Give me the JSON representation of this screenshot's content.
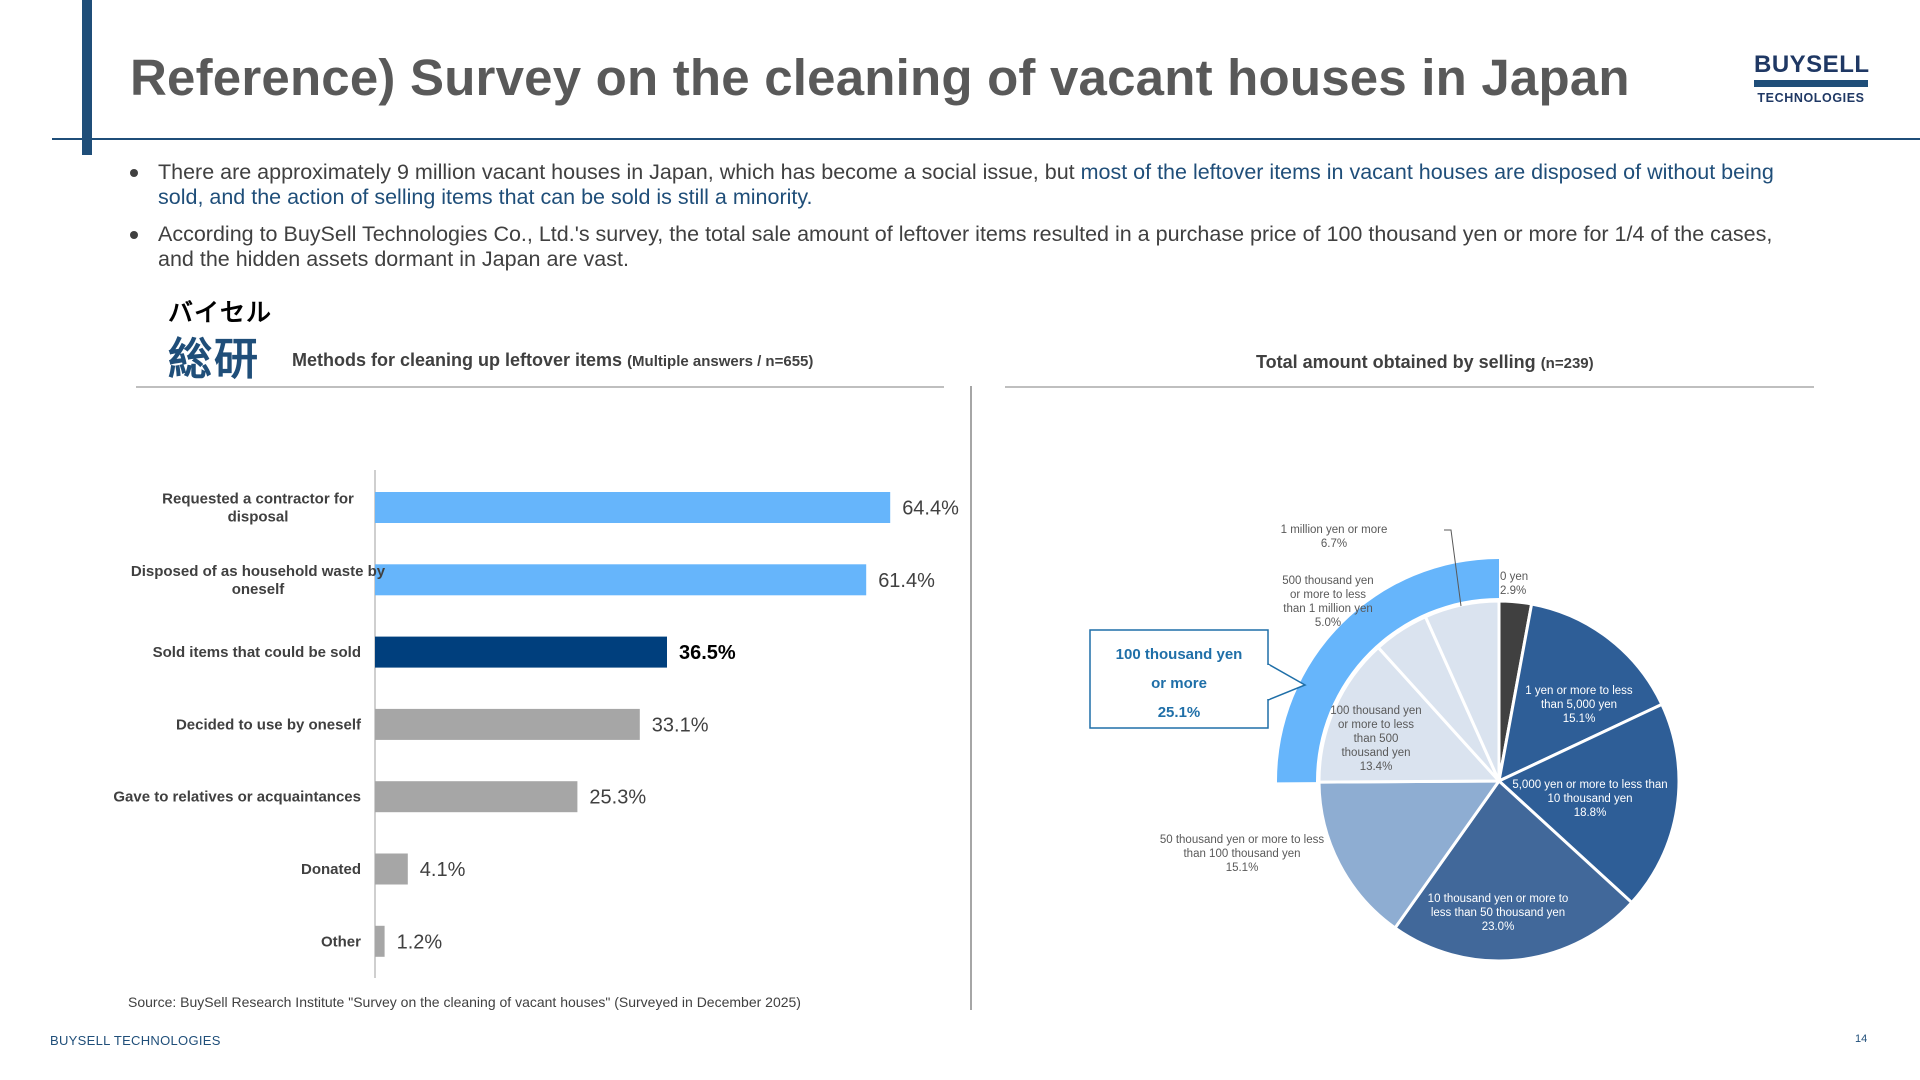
{
  "header": {
    "title": "Reference) Survey on the cleaning of vacant houses in Japan",
    "logo_top": "BUYSELL",
    "logo_bottom": "TECHNOLOGIES"
  },
  "bullets": [
    {
      "text_a": "There are approximately 9 million vacant houses in Japan, which has become a social issue, but ",
      "text_b": "most of the leftover items in vacant houses are disposed of without being sold, and the action of selling items that can be sold is still a minority."
    },
    {
      "text_a": "According to BuySell Technologies Co., Ltd.'s survey, the total sale amount of leftover items resulted in a purchase price of 100 thousand yen or more for 1/4 of the cases, and the hidden assets dormant in Japan are vast."
    }
  ],
  "sub_logo": {
    "line1": "バイセル",
    "line2": "総研"
  },
  "left_section": {
    "title": "Methods for cleaning up leftover items ",
    "note": "(Multiple answers / n=655)"
  },
  "right_section": {
    "title": "Total amount obtained by selling ",
    "note": "(n=239)"
  },
  "colors": {
    "accent": "#1f4e79",
    "bar_light_blue": "#66b5fb",
    "bar_dark_blue": "#003f7d",
    "bar_gray": "#a6a6a6",
    "pie_gray": "#404040",
    "pie_blue_1": "#2e5e97",
    "pie_blue_2": "#41689a",
    "pie_blue_3": "#4a73a5",
    "pie_blue_light": "#8eadd2",
    "pie_pale": "#dae3ef",
    "callout_blue": "#66b5fb"
  },
  "chart_data": [
    {
      "type": "bar",
      "orientation": "horizontal",
      "categories": [
        [
          "Requested a contractor for",
          "disposal"
        ],
        [
          "Disposed of as household waste by",
          "oneself"
        ],
        [
          "Sold items that could be sold"
        ],
        [
          "Decided to use by oneself"
        ],
        [
          "Gave to relatives or acquaintances"
        ],
        [
          "Donated"
        ],
        [
          "Other"
        ]
      ],
      "values": [
        64.4,
        61.4,
        36.5,
        33.1,
        25.3,
        4.1,
        1.2
      ],
      "value_labels": [
        "64.4%",
        "61.4%",
        "36.5%",
        "33.1%",
        "25.3%",
        "4.1%",
        "1.2%"
      ],
      "bar_colors": [
        "#66b5fb",
        "#66b5fb",
        "#003f7d",
        "#a6a6a6",
        "#a6a6a6",
        "#a6a6a6",
        "#a6a6a6"
      ],
      "highlight_index": 2,
      "xlim": [
        0,
        100
      ],
      "unit": "%"
    },
    {
      "type": "pie",
      "start": "12 o'clock",
      "direction": "clockwise",
      "slices": [
        {
          "label": [
            "0 yen",
            "2.9%"
          ],
          "value": 2.9,
          "color": "#404040"
        },
        {
          "label": [
            "1 yen or more to less",
            "than 5,000 yen",
            "15.1%"
          ],
          "value": 15.1,
          "color": "#2e5e97"
        },
        {
          "label": [
            "5,000 yen or more to less than",
            "10 thousand yen",
            "18.8%"
          ],
          "value": 18.8,
          "color": "#2e5e97"
        },
        {
          "label": [
            "10 thousand yen or more to",
            "less than 50 thousand yen",
            "23.0%"
          ],
          "value": 23.0,
          "color": "#41689a"
        },
        {
          "label": [
            "50 thousand yen or more to less",
            "than 100 thousand yen",
            "15.1%"
          ],
          "value": 15.1,
          "color": "#8eadd2"
        },
        {
          "label": [
            "100 thousand yen",
            "or more to less",
            "than 500",
            "thousand yen",
            "13.4%"
          ],
          "value": 13.4,
          "color": "#dae3ef"
        },
        {
          "label": [
            "500 thousand yen",
            "or more to less",
            "than 1 million yen",
            "5.0%"
          ],
          "value": 5.0,
          "color": "#dae3ef"
        },
        {
          "label": [
            "1 million yen or more",
            "6.7%"
          ],
          "value": 6.7,
          "color": "#dae3ef"
        }
      ],
      "callout": {
        "lines": [
          "100 thousand yen",
          "or more",
          "25.1%"
        ],
        "value": 25.1,
        "color": "#66b5fb"
      }
    }
  ],
  "source": "Source: BuySell Research Institute \"Survey on the cleaning of vacant houses\" (Surveyed in December 2025)",
  "footer": {
    "company": "BUYSELL TECHNOLOGIES",
    "page": "14"
  }
}
